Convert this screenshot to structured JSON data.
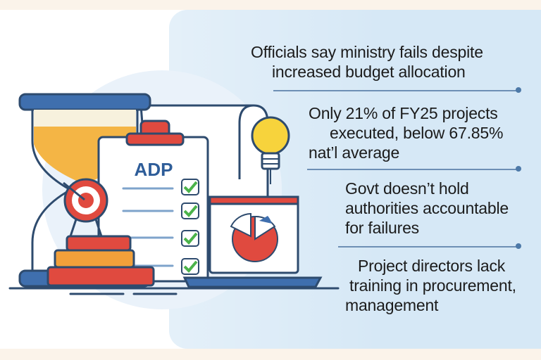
{
  "colors": {
    "panel": "#d6e8f6",
    "text": "#1b1b1b",
    "divider": "#6d8fb5",
    "accent_red": "#d9453c",
    "accent_orange": "#f2a03a",
    "accent_green": "#4bb34a"
  },
  "illustration": {
    "clipboard_label": "ADP",
    "icons": [
      "hourglass-icon",
      "clipboard-icon",
      "target-icon",
      "books-icon",
      "lightbulb-icon",
      "laptop-icon",
      "pie-chart-icon",
      "checkmark-icon"
    ]
  },
  "points": [
    {
      "lines": [
        "Officials say ministry fails despite",
        "increased budget allocation"
      ]
    },
    {
      "lines": [
        "Only 21% of FY25 projects",
        "executed, below 67.85%",
        "nat’l average"
      ]
    },
    {
      "lines": [
        "Govt doesn’t hold",
        "authorities accountable",
        "for failures"
      ]
    },
    {
      "lines": [
        "Project directors lack",
        "training in procurement,",
        "management"
      ]
    }
  ]
}
